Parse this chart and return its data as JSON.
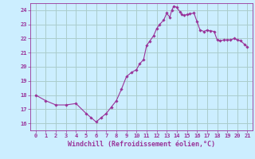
{
  "x_pts": [
    0,
    1,
    2,
    3,
    4,
    5,
    5.5,
    6,
    6.5,
    7,
    7.5,
    8,
    8.5,
    9,
    9.5,
    10,
    10.3,
    10.7,
    11,
    11.3,
    11.7,
    12,
    12.3,
    12.7,
    13,
    13.3,
    13.5,
    13.7,
    14,
    14.3,
    14.5,
    14.7,
    15,
    15.3,
    15.7,
    16,
    16.3,
    16.7,
    17,
    17.3,
    17.7,
    18,
    18.3,
    18.7,
    19,
    19.3,
    19.7,
    20,
    20.3,
    20.7,
    21
  ],
  "y_pts": [
    18.0,
    17.6,
    17.3,
    17.3,
    17.4,
    16.7,
    16.4,
    16.1,
    16.4,
    16.7,
    17.15,
    17.6,
    18.4,
    19.3,
    19.6,
    19.8,
    20.2,
    20.5,
    21.5,
    21.8,
    22.2,
    22.7,
    23.0,
    23.3,
    23.8,
    23.5,
    24.0,
    24.3,
    24.2,
    23.9,
    23.7,
    23.65,
    23.7,
    23.75,
    23.8,
    23.2,
    22.6,
    22.5,
    22.6,
    22.55,
    22.5,
    21.9,
    21.85,
    21.9,
    21.9,
    21.9,
    22.0,
    21.9,
    21.85,
    21.6,
    21.4
  ],
  "line_color": "#993399",
  "marker_color": "#993399",
  "bg_color": "#cceeff",
  "grid_color": "#aacccc",
  "xlabel": "Windchill (Refroidissement éolien,°C)",
  "xlim": [
    -0.5,
    21.5
  ],
  "ylim": [
    15.5,
    24.5
  ],
  "xticks": [
    0,
    1,
    2,
    3,
    4,
    5,
    6,
    7,
    8,
    9,
    10,
    11,
    12,
    13,
    14,
    15,
    16,
    17,
    18,
    19,
    20,
    21
  ],
  "yticks": [
    16,
    17,
    18,
    19,
    20,
    21,
    22,
    23,
    24
  ],
  "xlabel_color": "#993399",
  "tick_color": "#993399",
  "font": "monospace"
}
